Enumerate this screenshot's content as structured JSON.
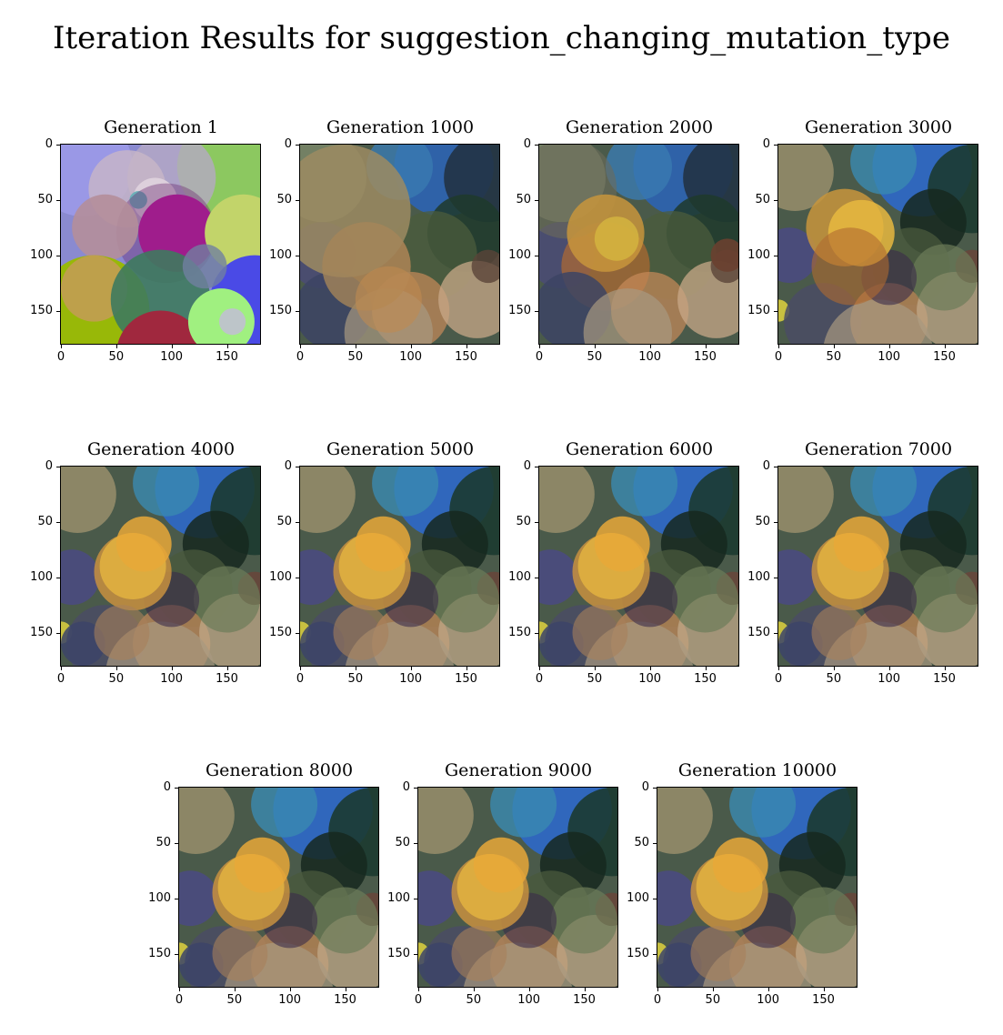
{
  "figure": {
    "title": "Iteration Results for suggestion_changing_mutation_type"
  },
  "chart_data": [
    {
      "type": "image",
      "title": "Generation 1",
      "xticks": [
        "0",
        "50",
        "100",
        "150"
      ],
      "yticks": [
        "0",
        "50",
        "100",
        "150"
      ],
      "xlim": [
        0,
        180
      ],
      "ylim": [
        180,
        0
      ]
    },
    {
      "type": "image",
      "title": "Generation 1000",
      "xticks": [
        "0",
        "50",
        "100",
        "150"
      ],
      "yticks": [
        "0",
        "50",
        "100",
        "150"
      ],
      "xlim": [
        0,
        180
      ],
      "ylim": [
        180,
        0
      ]
    },
    {
      "type": "image",
      "title": "Generation 2000",
      "xticks": [
        "0",
        "50",
        "100",
        "150"
      ],
      "yticks": [
        "0",
        "50",
        "100",
        "150"
      ],
      "xlim": [
        0,
        180
      ],
      "ylim": [
        180,
        0
      ]
    },
    {
      "type": "image",
      "title": "Generation 3000",
      "xticks": [
        "0",
        "50",
        "100",
        "150"
      ],
      "yticks": [
        "0",
        "50",
        "100",
        "150"
      ],
      "xlim": [
        0,
        180
      ],
      "ylim": [
        180,
        0
      ]
    },
    {
      "type": "image",
      "title": "Generation 4000",
      "xticks": [
        "0",
        "50",
        "100",
        "150"
      ],
      "yticks": [
        "0",
        "50",
        "100",
        "150"
      ],
      "xlim": [
        0,
        180
      ],
      "ylim": [
        180,
        0
      ]
    },
    {
      "type": "image",
      "title": "Generation 5000",
      "xticks": [
        "0",
        "50",
        "100",
        "150"
      ],
      "yticks": [
        "0",
        "50",
        "100",
        "150"
      ],
      "xlim": [
        0,
        180
      ],
      "ylim": [
        180,
        0
      ]
    },
    {
      "type": "image",
      "title": "Generation 6000",
      "xticks": [
        "0",
        "50",
        "100",
        "150"
      ],
      "yticks": [
        "0",
        "50",
        "100",
        "150"
      ],
      "xlim": [
        0,
        180
      ],
      "ylim": [
        180,
        0
      ]
    },
    {
      "type": "image",
      "title": "Generation 7000",
      "xticks": [
        "0",
        "50",
        "100",
        "150"
      ],
      "yticks": [
        "0",
        "50",
        "100",
        "150"
      ],
      "xlim": [
        0,
        180
      ],
      "ylim": [
        180,
        0
      ]
    },
    {
      "type": "image",
      "title": "Generation 8000",
      "xticks": [
        "0",
        "50",
        "100",
        "150"
      ],
      "yticks": [
        "0",
        "50",
        "100",
        "150"
      ],
      "xlim": [
        0,
        180
      ],
      "ylim": [
        180,
        0
      ]
    },
    {
      "type": "image",
      "title": "Generation 9000",
      "xticks": [
        "0",
        "50",
        "100",
        "150"
      ],
      "yticks": [
        "0",
        "50",
        "100",
        "150"
      ],
      "xlim": [
        0,
        180
      ],
      "ylim": [
        180,
        0
      ]
    },
    {
      "type": "image",
      "title": "Generation 10000",
      "xticks": [
        "0",
        "50",
        "100",
        "150"
      ],
      "yticks": [
        "0",
        "50",
        "100",
        "150"
      ],
      "xlim": [
        0,
        180
      ],
      "ylim": [
        180,
        0
      ]
    }
  ]
}
